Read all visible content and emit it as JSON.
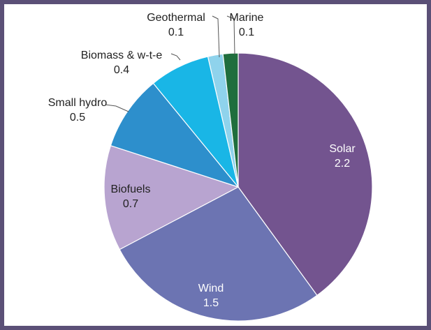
{
  "chart_data": {
    "type": "pie",
    "slices": [
      {
        "label": "Solar",
        "value": 2.2,
        "color": "#73548f"
      },
      {
        "label": "Wind",
        "value": 1.5,
        "color": "#6c74b2"
      },
      {
        "label": "Biofuels",
        "value": 0.7,
        "color": "#b8a4d0"
      },
      {
        "label": "Small hydro",
        "value": 0.5,
        "color": "#2d8fcc"
      },
      {
        "label": "Biomass & w-t-e",
        "value": 0.4,
        "color": "#19b6e6"
      },
      {
        "label": "Geothermal",
        "value": 0.1,
        "color": "#8fd3ec"
      },
      {
        "label": "Marine",
        "value": 0.1,
        "color": "#1f6e3d"
      }
    ],
    "slice_order": "clockwise from top",
    "border_color": "#5b5077"
  }
}
